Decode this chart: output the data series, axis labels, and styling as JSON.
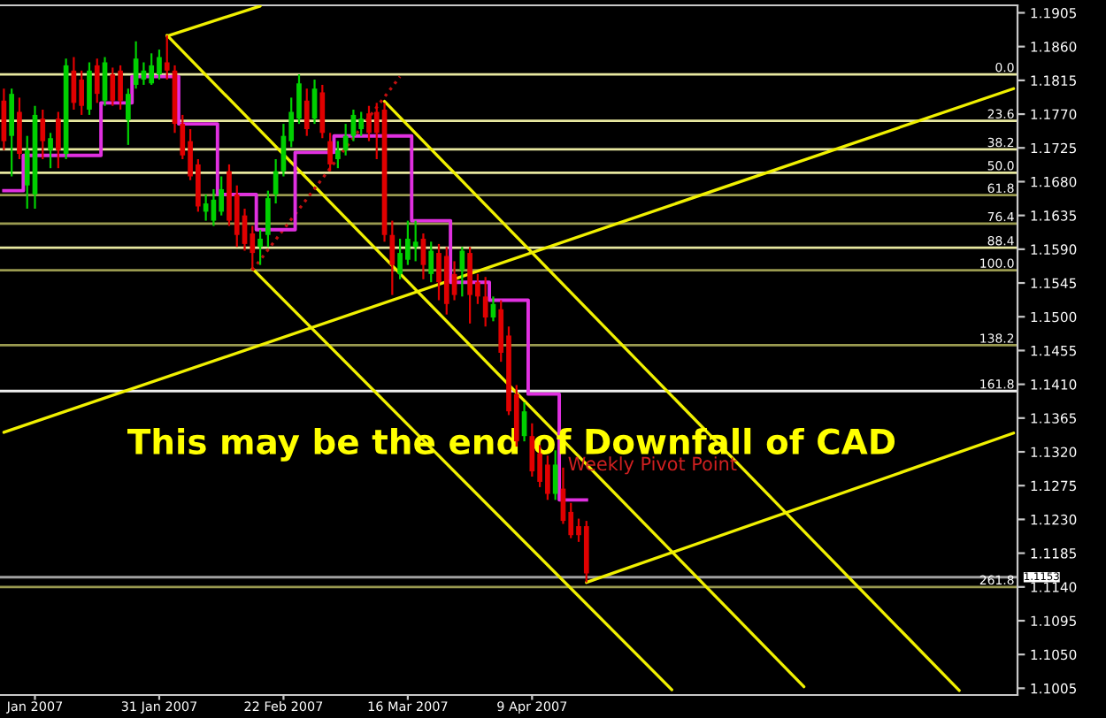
{
  "chart_data": {
    "type": "candlestick",
    "categories": [
      null,
      null,
      null,
      null,
      "Jan 2007",
      null,
      null,
      null,
      null,
      null,
      null,
      null,
      null,
      null,
      null,
      null,
      null,
      null,
      null,
      null,
      "31 Jan 2007",
      null,
      null,
      null,
      null,
      null,
      null,
      null,
      null,
      null,
      null,
      null,
      null,
      null,
      null,
      null,
      "22 Feb 2007",
      null,
      null,
      null,
      null,
      null,
      null,
      null,
      null,
      null,
      null,
      null,
      null,
      null,
      null,
      null,
      "16 Mar 2007",
      null,
      null,
      null,
      null,
      null,
      null,
      null,
      null,
      null,
      null,
      null,
      null,
      null,
      null,
      null,
      "9 Apr 2007",
      null,
      null,
      null,
      null,
      null,
      null,
      null,
      null,
      null,
      null,
      null,
      null,
      null,
      null,
      null,
      null,
      null,
      null,
      null,
      null,
      null,
      null,
      null,
      null,
      null,
      null,
      null,
      null,
      null,
      null,
      null,
      null,
      null,
      null,
      null,
      null,
      null,
      null,
      null,
      null,
      null,
      null,
      null,
      null,
      null,
      null,
      null,
      null,
      null,
      null,
      null,
      null,
      null,
      null,
      null,
      null,
      null,
      null,
      null,
      null,
      null,
      null
    ],
    "ohlc": [
      [
        1.1788,
        1.1804,
        1.1722,
        1.1734
      ],
      [
        1.1741,
        1.1804,
        1.1687,
        1.1797
      ],
      [
        1.1773,
        1.1792,
        1.171,
        1.1717
      ],
      [
        1.1675,
        1.1741,
        1.1644,
        1.1722
      ],
      [
        1.1663,
        1.1781,
        1.1644,
        1.1769
      ],
      [
        1.1764,
        1.1776,
        1.171,
        1.1734
      ],
      [
        1.1722,
        1.1745,
        1.1698,
        1.1738
      ],
      [
        1.1764,
        1.1773,
        1.1698,
        1.1722
      ],
      [
        1.1717,
        1.1844,
        1.171,
        1.1835
      ],
      [
        1.1828,
        1.1846,
        1.1776,
        1.1785
      ],
      [
        1.1816,
        1.1828,
        1.1769,
        1.1781
      ],
      [
        1.1776,
        1.1839,
        1.1769,
        1.1828
      ],
      [
        1.1835,
        1.1844,
        1.1785,
        1.1797
      ],
      [
        1.1788,
        1.1846,
        1.1781,
        1.1839
      ],
      [
        1.1823,
        1.1832,
        1.1781,
        1.1788
      ],
      [
        1.1828,
        1.1835,
        1.1776,
        1.1788
      ],
      [
        1.1762,
        1.1804,
        1.1729,
        1.1797
      ],
      [
        1.1809,
        1.1867,
        1.1804,
        1.1844
      ],
      [
        1.1816,
        1.1839,
        1.1809,
        1.1828
      ],
      [
        1.1811,
        1.1851,
        1.1809,
        1.1835
      ],
      [
        1.1823,
        1.1856,
        1.1816,
        1.1846
      ],
      [
        1.1839,
        1.1875,
        1.1816,
        1.1828
      ],
      [
        1.1828,
        1.1835,
        1.1745,
        1.1757
      ],
      [
        1.1757,
        1.1769,
        1.171,
        1.1715
      ],
      [
        1.1734,
        1.175,
        1.1682,
        1.1687
      ],
      [
        1.1703,
        1.171,
        1.164,
        1.1647
      ],
      [
        1.164,
        1.1663,
        1.1628,
        1.1651
      ],
      [
        1.1628,
        1.167,
        1.1621,
        1.1656
      ],
      [
        1.164,
        1.1687,
        1.1635,
        1.167
      ],
      [
        1.1694,
        1.1703,
        1.1621,
        1.1628
      ],
      [
        1.1663,
        1.1675,
        1.1593,
        1.1609
      ],
      [
        1.1635,
        1.1644,
        1.1588,
        1.1597
      ],
      [
        1.1611,
        1.1621,
        1.1562,
        1.1585
      ],
      [
        1.1593,
        1.1616,
        1.1569,
        1.1604
      ],
      [
        1.1609,
        1.1668,
        1.1593,
        1.1658
      ],
      [
        1.1663,
        1.171,
        1.1651,
        1.1694
      ],
      [
        1.1694,
        1.1757,
        1.1687,
        1.1741
      ],
      [
        1.1734,
        1.1792,
        1.1726,
        1.1773
      ],
      [
        1.1764,
        1.1823,
        1.1757,
        1.1811
      ],
      [
        1.1788,
        1.1804,
        1.1741,
        1.175
      ],
      [
        1.1764,
        1.1816,
        1.1757,
        1.1804
      ],
      [
        1.1799,
        1.1809,
        1.1738,
        1.1745
      ],
      [
        1.1734,
        1.1745,
        1.1694,
        1.1703
      ],
      [
        1.171,
        1.1734,
        1.1698,
        1.1722
      ],
      [
        1.1722,
        1.1757,
        1.1715,
        1.1741
      ],
      [
        1.1741,
        1.1776,
        1.1734,
        1.1769
      ],
      [
        1.175,
        1.1773,
        1.1741,
        1.1764
      ],
      [
        1.1771,
        1.1781,
        1.1734,
        1.1745
      ],
      [
        1.1773,
        1.1785,
        1.171,
        1.1745
      ],
      [
        1.1776,
        1.1785,
        1.16,
        1.1609
      ],
      [
        1.1609,
        1.1628,
        1.1529,
        1.1569
      ],
      [
        1.1557,
        1.1604,
        1.155,
        1.1585
      ],
      [
        1.1576,
        1.1628,
        1.1569,
        1.1604
      ],
      [
        1.1593,
        1.1628,
        1.1574,
        1.16
      ],
      [
        1.1604,
        1.1611,
        1.155,
        1.1569
      ],
      [
        1.1557,
        1.16,
        1.1546,
        1.1588
      ],
      [
        1.1585,
        1.1597,
        1.1522,
        1.1546
      ],
      [
        1.1581,
        1.1593,
        1.1503,
        1.1517
      ],
      [
        1.1557,
        1.1574,
        1.1522,
        1.1529
      ],
      [
        1.1562,
        1.1593,
        1.1527,
        1.1588
      ],
      [
        1.1585,
        1.1593,
        1.1491,
        1.1529
      ],
      [
        1.1546,
        1.1557,
        1.1517,
        1.1527
      ],
      [
        1.1527,
        1.1553,
        1.1487,
        1.1499
      ],
      [
        1.1499,
        1.1527,
        1.1494,
        1.1517
      ],
      [
        1.151,
        1.1522,
        1.144,
        1.1452
      ],
      [
        1.1475,
        1.1487,
        1.1369,
        1.1374
      ],
      [
        1.1397,
        1.1409,
        1.1327,
        1.1334
      ],
      [
        1.1341,
        1.1386,
        1.1334,
        1.1374
      ],
      [
        1.1341,
        1.1358,
        1.1287,
        1.1294
      ],
      [
        1.1318,
        1.1329,
        1.1273,
        1.128
      ],
      [
        1.1303,
        1.1315,
        1.1256,
        1.1264
      ],
      [
        1.1264,
        1.1322,
        1.1256,
        1.1303
      ],
      [
        1.1271,
        1.1299,
        1.1224,
        1.1228
      ],
      [
        1.124,
        1.1252,
        1.1205,
        1.1209
      ],
      [
        1.1221,
        1.1231,
        1.12,
        1.1209
      ],
      [
        1.1221,
        1.1228,
        1.1146,
        1.1158
      ],
      null,
      null,
      null,
      null,
      null,
      null,
      null,
      null,
      null,
      null,
      null,
      null,
      null,
      null,
      null,
      null,
      null,
      null,
      null,
      null,
      null,
      null,
      null,
      null,
      null,
      null,
      null,
      null,
      null,
      null,
      null,
      null,
      null,
      null,
      null,
      null,
      null,
      null,
      null,
      null,
      null,
      null,
      null,
      null,
      null,
      null,
      null,
      null,
      null,
      null,
      null,
      null,
      null,
      null,
      null
    ],
    "colors": [
      "#e00000",
      "#00d000",
      "#e00000",
      "#00d000",
      "#00d000",
      "#e00000",
      "#00d000",
      "#e00000",
      "#00d000",
      "#e00000",
      "#e00000",
      "#00d000",
      "#e00000",
      "#00d000",
      "#e00000",
      "#e00000",
      "#00d000",
      "#00d000",
      "#00d000",
      "#00d000",
      "#00d000",
      "#e00000",
      "#e00000",
      "#e00000",
      "#e00000",
      "#e00000",
      "#00d000",
      "#00d000",
      "#00d000",
      "#e00000",
      "#e00000",
      "#e00000",
      "#e00000",
      "#00d000",
      "#00d000",
      "#00d000",
      "#00d000",
      "#00d000",
      "#00d000",
      "#e00000",
      "#00d000",
      "#e00000",
      "#e00000",
      "#00d000",
      "#00d000",
      "#00d000",
      "#00d000",
      "#e00000",
      "#e00000",
      "#e00000",
      "#e00000",
      "#00d000",
      "#00d000",
      "#00d000",
      "#e00000",
      "#00d000",
      "#e00000",
      "#e00000",
      "#e00000",
      "#00d000",
      "#e00000",
      "#e00000",
      "#e00000",
      "#00d000",
      "#e00000",
      "#e00000",
      "#e00000",
      "#00d000",
      "#e00000",
      "#e00000",
      "#e00000",
      "#00d000",
      "#e00000",
      "#e00000",
      "#e00000",
      "#e00000",
      null,
      null,
      null,
      null,
      null,
      null,
      null,
      null,
      null,
      null,
      null,
      null,
      null,
      null,
      null,
      null,
      null,
      null,
      null,
      null,
      null,
      null,
      null,
      null,
      null,
      null,
      null,
      null,
      null,
      null,
      null,
      null,
      null,
      null,
      null,
      null,
      null,
      null,
      null,
      null,
      null,
      null,
      null,
      null,
      null,
      null,
      null,
      null,
      null,
      null,
      null,
      null,
      null,
      null,
      null
    ],
    "series": [
      {
        "type": "step",
        "color": "#e030e0",
        "values": [
          1.1668,
          1.1668,
          1.1668,
          1.1715,
          1.1715,
          1.1715,
          1.1715,
          1.1715,
          1.1715,
          1.1715,
          1.1715,
          1.1715,
          1.1715,
          1.1785,
          1.1785,
          1.1785,
          1.1785,
          1.182,
          1.182,
          1.182,
          1.182,
          1.182,
          1.182,
          1.1757,
          1.1757,
          1.1757,
          1.1757,
          1.1757,
          1.1663,
          1.1663,
          1.1663,
          1.1663,
          1.1663,
          1.1616,
          1.1616,
          1.1616,
          1.1616,
          1.1616,
          1.1719,
          1.1719,
          1.1719,
          1.1719,
          1.1719,
          1.1741,
          1.1741,
          1.1741,
          1.1741,
          1.1741,
          1.1741,
          1.1741,
          1.1741,
          1.1741,
          1.1741,
          1.1628,
          1.1628,
          1.1628,
          1.1628,
          1.1628,
          1.1546,
          1.1546,
          1.1546,
          1.1546,
          1.1546,
          1.1522,
          1.1522,
          1.1522,
          1.1522,
          1.1522,
          1.1397,
          1.1397,
          1.1397,
          1.1397,
          1.1256,
          1.1256,
          1.1256,
          1.1256,
          null,
          null,
          null,
          null,
          null,
          null,
          null,
          null,
          null,
          null,
          null,
          null,
          null,
          null,
          null,
          null,
          null,
          null,
          null,
          null,
          null,
          null,
          null,
          null,
          null,
          null,
          null,
          null,
          null,
          null,
          null,
          null,
          null,
          null,
          null,
          null,
          null,
          null,
          null,
          null,
          null,
          null,
          null,
          null,
          null,
          null,
          null,
          null,
          null,
          null,
          null,
          null,
          null,
          null,
          null
        ]
      },
      {
        "type": "line",
        "color": "#f0f000",
        "values": [
          null,
          null,
          null,
          null,
          null,
          null,
          null,
          null,
          null,
          null,
          null,
          null,
          null,
          null,
          null,
          null,
          null,
          null,
          null,
          null,
          null,
          1.1874,
          null,
          null,
          null,
          null,
          null,
          null,
          null,
          null,
          null,
          null,
          null,
          1.1914,
          null,
          null,
          null,
          null,
          null,
          null,
          null,
          null,
          null,
          null,
          null,
          null,
          null,
          null,
          null,
          null,
          null,
          null,
          null,
          null,
          null,
          null,
          null,
          null,
          null,
          null,
          null,
          null,
          null,
          null,
          null,
          null,
          null,
          null,
          null,
          null,
          null,
          null,
          null,
          null,
          null,
          null,
          null,
          null,
          null,
          null,
          null,
          null,
          null,
          null,
          null,
          null,
          null,
          null,
          null,
          null,
          null,
          null,
          null,
          null,
          null,
          null,
          null,
          null,
          null,
          null,
          null,
          null,
          null,
          null,
          null,
          null,
          null,
          null,
          null,
          null,
          null,
          null,
          null,
          null,
          null,
          null,
          null,
          null,
          null,
          null,
          null,
          null,
          null,
          null,
          null,
          null,
          null,
          null,
          null,
          null,
          null
        ]
      },
      {
        "type": "line",
        "color": "#f0f000",
        "values": [
          null,
          null,
          null,
          null,
          null,
          null,
          null,
          null,
          null,
          null,
          null,
          null,
          null,
          null,
          null,
          null,
          null,
          null,
          null,
          null,
          null,
          1.1875,
          null,
          null,
          null,
          null,
          null,
          null,
          null,
          null,
          null,
          null,
          null,
          null,
          null,
          null,
          null,
          null,
          null,
          null,
          null,
          null,
          null,
          null,
          null,
          null,
          null,
          null,
          null,
          null,
          null,
          null,
          null,
          null,
          null,
          null,
          null,
          null,
          null,
          null,
          null,
          null,
          null,
          null,
          null,
          null,
          null,
          null,
          null,
          null,
          null,
          null,
          null,
          null,
          null,
          null,
          null,
          null,
          null,
          null,
          null,
          null,
          null,
          null,
          null,
          null,
          null,
          null,
          null,
          null,
          null,
          null,
          null,
          null,
          null,
          null,
          null,
          null,
          null,
          null,
          null,
          null,
          null,
          1.1007,
          null,
          null,
          null,
          null,
          null,
          null,
          null,
          null,
          null,
          null,
          null,
          null,
          null,
          null,
          null,
          null,
          null,
          null,
          null,
          null,
          null,
          null,
          null,
          null,
          null,
          null,
          null
        ]
      },
      {
        "type": "line",
        "color": "#f0f000",
        "values": [
          null,
          null,
          null,
          null,
          null,
          null,
          null,
          null,
          null,
          null,
          null,
          null,
          null,
          null,
          null,
          null,
          null,
          null,
          null,
          null,
          null,
          null,
          null,
          null,
          null,
          null,
          null,
          null,
          null,
          null,
          null,
          null,
          1.1564,
          null,
          null,
          null,
          null,
          null,
          null,
          null,
          null,
          null,
          null,
          null,
          null,
          null,
          null,
          null,
          null,
          null,
          null,
          null,
          null,
          null,
          null,
          null,
          null,
          null,
          null,
          null,
          null,
          null,
          null,
          null,
          null,
          null,
          null,
          null,
          null,
          null,
          null,
          null,
          null,
          null,
          null,
          null,
          null,
          null,
          null,
          null,
          null,
          null,
          null,
          null,
          null,
          null,
          1.1003,
          null,
          null,
          null,
          null,
          null,
          null,
          null,
          null,
          null,
          null,
          null,
          null,
          null,
          null,
          null,
          null,
          null,
          null,
          null,
          null,
          null,
          null,
          null,
          null,
          null,
          null,
          null,
          null,
          null,
          null,
          null,
          null,
          null,
          null,
          null,
          null,
          null,
          null,
          null,
          null,
          null,
          null,
          null,
          null
        ]
      },
      {
        "type": "line",
        "color": "#f0f000",
        "values": [
          null,
          null,
          null,
          null,
          null,
          null,
          null,
          null,
          null,
          null,
          null,
          null,
          null,
          null,
          null,
          null,
          null,
          null,
          null,
          null,
          null,
          null,
          null,
          null,
          null,
          null,
          null,
          null,
          null,
          null,
          null,
          null,
          null,
          null,
          null,
          null,
          null,
          null,
          null,
          null,
          null,
          null,
          null,
          null,
          null,
          null,
          null,
          null,
          null,
          1.1787,
          null,
          null,
          null,
          null,
          null,
          null,
          null,
          null,
          null,
          null,
          null,
          null,
          null,
          null,
          null,
          null,
          null,
          null,
          null,
          null,
          null,
          null,
          null,
          null,
          null,
          null,
          null,
          null,
          null,
          null,
          null,
          null,
          null,
          null,
          null,
          null,
          null,
          null,
          null,
          null,
          null,
          null,
          null,
          null,
          null,
          null,
          null,
          null,
          null,
          null,
          null,
          null,
          null,
          null,
          null,
          null,
          null,
          null,
          null,
          null,
          null,
          null,
          null,
          null,
          null,
          null,
          null,
          null,
          null,
          null,
          null,
          null,
          null,
          1.1002,
          null,
          null,
          null,
          null,
          null,
          null,
          null
        ]
      },
      {
        "type": "line",
        "color": "#f0f000",
        "values": [
          1.1346,
          null,
          null,
          null,
          null,
          null,
          null,
          null,
          null,
          null,
          null,
          null,
          null,
          null,
          null,
          null,
          null,
          null,
          null,
          null,
          null,
          null,
          null,
          null,
          null,
          null,
          null,
          null,
          null,
          null,
          null,
          null,
          null,
          null,
          null,
          null,
          null,
          null,
          null,
          null,
          null,
          null,
          null,
          null,
          null,
          null,
          null,
          null,
          null,
          null,
          null,
          null,
          null,
          null,
          null,
          null,
          null,
          null,
          null,
          null,
          null,
          null,
          null,
          null,
          null,
          null,
          null,
          null,
          null,
          null,
          null,
          null,
          null,
          null,
          null,
          null,
          null,
          null,
          null,
          null,
          null,
          null,
          null,
          null,
          null,
          null,
          null,
          null,
          null,
          null,
          null,
          null,
          null,
          null,
          null,
          null,
          null,
          null,
          null,
          null,
          null,
          null,
          null,
          null,
          null,
          null,
          null,
          null,
          null,
          null,
          null,
          null,
          null,
          null,
          null,
          null,
          null,
          null,
          null,
          null,
          null,
          null,
          null,
          null,
          null,
          null,
          null,
          null,
          null,
          null,
          1.1804
        ]
      },
      {
        "type": "line",
        "color": "#f0f000",
        "values": [
          null,
          null,
          null,
          null,
          null,
          null,
          null,
          null,
          null,
          null,
          null,
          null,
          null,
          null,
          null,
          null,
          null,
          null,
          null,
          null,
          null,
          null,
          null,
          null,
          null,
          null,
          null,
          null,
          null,
          null,
          null,
          null,
          null,
          null,
          null,
          null,
          null,
          null,
          null,
          null,
          null,
          null,
          null,
          null,
          null,
          null,
          null,
          null,
          null,
          null,
          null,
          null,
          null,
          null,
          null,
          null,
          null,
          null,
          null,
          null,
          null,
          null,
          null,
          null,
          null,
          null,
          null,
          null,
          null,
          null,
          null,
          null,
          null,
          null,
          null,
          1.1146,
          null,
          null,
          null,
          null,
          null,
          null,
          null,
          null,
          null,
          null,
          null,
          null,
          null,
          null,
          null,
          null,
          null,
          null,
          null,
          null,
          null,
          null,
          null,
          null,
          null,
          null,
          null,
          null,
          null,
          null,
          null,
          null,
          null,
          null,
          null,
          null,
          null,
          null,
          null,
          null,
          null,
          null,
          null,
          null,
          null,
          null,
          null,
          null,
          null,
          null,
          null,
          null,
          null,
          null,
          1.1345
        ]
      },
      {
        "type": "line",
        "color": "#c01010",
        "line_style": "dotted",
        "values": [
          null,
          null,
          null,
          null,
          null,
          null,
          null,
          null,
          null,
          null,
          null,
          null,
          null,
          null,
          null,
          null,
          null,
          null,
          null,
          null,
          null,
          null,
          null,
          null,
          null,
          null,
          null,
          null,
          null,
          null,
          null,
          null,
          1.1562,
          null,
          null,
          null,
          null,
          null,
          null,
          null,
          null,
          null,
          null,
          null,
          null,
          null,
          null,
          null,
          null,
          null,
          null,
          1.182,
          null,
          null,
          null,
          null,
          null,
          null,
          null,
          null,
          null,
          null,
          null,
          null,
          null,
          null,
          null,
          null,
          null,
          null,
          null,
          null,
          null,
          null,
          null,
          null,
          null,
          null,
          null,
          null,
          null,
          null,
          null,
          null,
          null,
          null,
          null,
          null,
          null,
          null,
          null,
          null,
          null,
          null,
          null,
          null,
          null,
          null,
          null,
          null,
          null,
          null,
          null,
          null,
          null,
          null,
          null,
          null,
          null,
          null,
          null,
          null,
          null,
          null,
          null,
          null,
          null,
          null,
          null,
          null,
          null,
          null,
          null,
          null,
          null,
          null,
          null,
          null,
          null,
          null,
          null
        ]
      }
    ],
    "ylim": [
      1.0996,
      1.1915
    ],
    "yticks": [
      1.1005,
      {
        "value": 1.105,
        "label": "1.1050"
      },
      1.1095,
      {
        "value": 1.114,
        "label": "1.1140"
      },
      1.1185,
      {
        "value": 1.123,
        "label": "1.1230"
      },
      1.1275,
      {
        "value": 1.132,
        "label": "1.1320"
      },
      1.1365,
      {
        "value": 1.141,
        "label": "1.1410"
      },
      1.1455,
      {
        "value": 1.15,
        "label": "1.1500"
      },
      1.1545,
      {
        "value": 1.159,
        "label": "1.1590"
      },
      1.1635,
      {
        "value": 1.168,
        "label": "1.1680"
      },
      1.1725,
      {
        "value": 1.177,
        "label": "1.1770"
      },
      1.1815,
      {
        "value": 1.186,
        "label": "1.1860"
      },
      1.1905
    ],
    "grid": false,
    "ref_lines": [
      {
        "axis": "y",
        "value": 1.1823,
        "color": "#e8e8a0"
      },
      {
        "axis": "y",
        "value": 1.1761,
        "color": "#e8e8a0"
      },
      {
        "axis": "y",
        "value": 1.1723,
        "color": "#e8e8a0"
      },
      {
        "axis": "y",
        "value": 1.1692,
        "color": "#e8e8a0"
      },
      {
        "axis": "y",
        "value": 1.1662,
        "color": "#9a9a50"
      },
      {
        "axis": "y",
        "value": 1.1624,
        "color": "#9a9a50"
      },
      {
        "axis": "y",
        "value": 1.1592,
        "color": "#e8e8a0"
      },
      {
        "axis": "y",
        "value": 1.1562,
        "color": "#9a9a50"
      },
      {
        "axis": "y",
        "value": 1.1462,
        "color": "#9a9a50"
      },
      {
        "axis": "y",
        "value": 1.1401,
        "color": "#f0f0f0"
      },
      {
        "axis": "y",
        "value": 1.114,
        "color": "#9a9a50"
      },
      {
        "axis": "y",
        "value": 1.1153,
        "label": "1.1153",
        "color": "#a0a0a0"
      }
    ],
    "annotations": [
      "This may be the end of Downfall of CAD",
      "Weekly Pivot Point",
      {
        "text": "0.0",
        "y": 1.1823
      },
      {
        "text": "23.6",
        "y": 1.1761
      },
      {
        "text": "38.2",
        "y": 1.1723
      },
      {
        "text": "50.0",
        "y": 1.1692
      },
      {
        "text": "61.8",
        "y": 1.1662
      },
      {
        "text": "76.4",
        "y": 1.1624
      },
      {
        "text": "88.4",
        "y": 1.1592
      },
      {
        "text": "100.0",
        "y": 1.1562
      },
      {
        "text": "138.2",
        "y": 1.1462
      },
      {
        "text": "161.8",
        "y": 1.1401
      },
      {
        "text": "261.8",
        "y": 1.114
      }
    ]
  }
}
